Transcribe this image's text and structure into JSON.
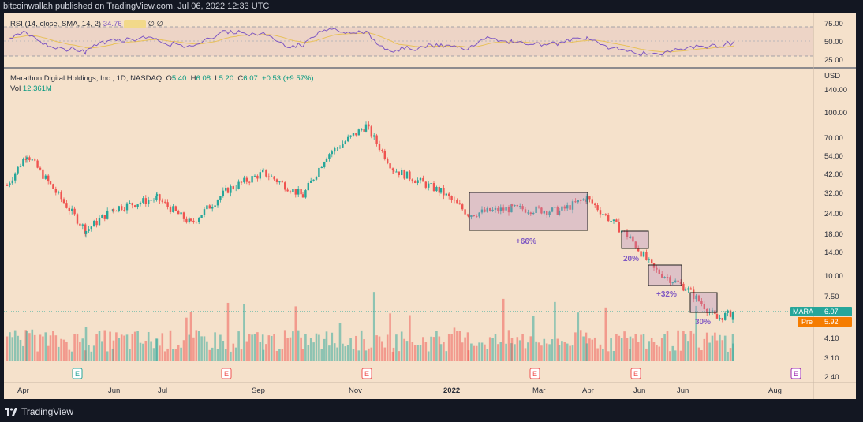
{
  "header": {
    "published": "bitcoinwallah published on TradingView.com, Jul 06, 2022 12:33 UTC"
  },
  "footer": {
    "brand": "TradingView"
  },
  "rsi": {
    "label": "RSI (14, close, SMA, 14, 2)",
    "value": "34.76",
    "sma_value": "32.67",
    "extra1": "∅",
    "extra2": "∅",
    "ticks": [
      "75.00",
      "50.00",
      "25.00"
    ]
  },
  "legend": {
    "title": "Marathon Digital Holdings, Inc., 1D, NASDAQ",
    "open_label": "O",
    "open": "5.40",
    "high_label": "H",
    "high": "6.08",
    "low_label": "L",
    "low": "5.20",
    "close_label": "C",
    "close": "6.07",
    "change": "+0.53 (+9.57%)",
    "vol_label": "Vol",
    "vol_value": "12.361M"
  },
  "price_axis": {
    "currency": "USD",
    "ticks": [
      "140.00",
      "100.00",
      "70.00",
      "54.00",
      "42.00",
      "32.00",
      "24.00",
      "18.00",
      "14.00",
      "10.00",
      "7.50",
      "4.10",
      "3.10",
      "2.40"
    ],
    "ticker_tag": "MARA",
    "ticker_price": "6.07",
    "pre_tag": "Pre",
    "pre_price": "5.92"
  },
  "time_axis": {
    "labels": [
      "Apr",
      "Jun",
      "Jul",
      "Sep",
      "Nov",
      "2022",
      "Mar",
      "Apr",
      "Jun",
      "Jun",
      "Aug"
    ]
  },
  "earnings_marker": "E",
  "annotations": [
    "+66%",
    "20%",
    "+32%",
    "30%"
  ],
  "colors": {
    "up": "#26a69a",
    "down": "#ef5350",
    "rsi": "#7e57c2",
    "sma": "#e8c15a",
    "box": "#9c27b0",
    "annotation": "#7e57c2"
  },
  "chart_data": {
    "type": "candlestick",
    "title": "Marathon Digital Holdings, Inc., 1D, NASDAQ",
    "scale": "log",
    "ylim": [
      2.4,
      160
    ],
    "x_labels": [
      "Apr",
      "Jun",
      "Jul",
      "Sep",
      "Nov",
      "2022",
      "Mar",
      "Apr",
      "Jun",
      "Jun",
      "Aug"
    ],
    "close_path": [
      {
        "t": "Apr 2021",
        "v": 36
      },
      {
        "t": "Apr 2021 peak",
        "v": 56
      },
      {
        "t": "May 2021",
        "v": 36
      },
      {
        "t": "Jun 2021 low",
        "v": 19
      },
      {
        "t": "Jun 2021",
        "v": 26
      },
      {
        "t": "Jul 2021",
        "v": 30
      },
      {
        "t": "Jul 2021 low",
        "v": 21
      },
      {
        "t": "Aug 2021",
        "v": 34
      },
      {
        "t": "Sep 2021",
        "v": 43
      },
      {
        "t": "Oct 2021",
        "v": 31
      },
      {
        "t": "Oct 2021 rally",
        "v": 55
      },
      {
        "t": "Nov 2021 peak",
        "v": 83
      },
      {
        "t": "Dec 2021",
        "v": 45
      },
      {
        "t": "Dec 2021 end",
        "v": 33
      },
      {
        "t": "Jan 2022",
        "v": 24
      },
      {
        "t": "Feb 2022",
        "v": 26
      },
      {
        "t": "Mar 2022",
        "v": 25
      },
      {
        "t": "Apr 2022",
        "v": 30
      },
      {
        "t": "May 2022",
        "v": 17
      },
      {
        "t": "May 2022 end",
        "v": 11
      },
      {
        "t": "Jun 2022",
        "v": 8.5
      },
      {
        "t": "Jun 2022 low",
        "v": 5.5
      },
      {
        "t": "Jul 2022",
        "v": 6.07
      }
    ],
    "boxes": [
      {
        "label": "+66%",
        "from": "Jan 2022",
        "to": "Apr 2022",
        "low": 19,
        "high": 33
      },
      {
        "label": "20%",
        "from": "May 2022",
        "to": "May 2022",
        "low": 15,
        "high": 19.5
      },
      {
        "label": "+32%",
        "from": "May 2022",
        "to": "Jun 2022",
        "low": 9,
        "high": 11.6
      },
      {
        "label": "30%",
        "from": "Jun 2022",
        "to": "Jul 2022",
        "low": 6.3,
        "high": 8.1
      }
    ],
    "rsi": {
      "last": 34.76,
      "levels": [
        70,
        50,
        30
      ]
    },
    "volume_last": "12.361M"
  }
}
